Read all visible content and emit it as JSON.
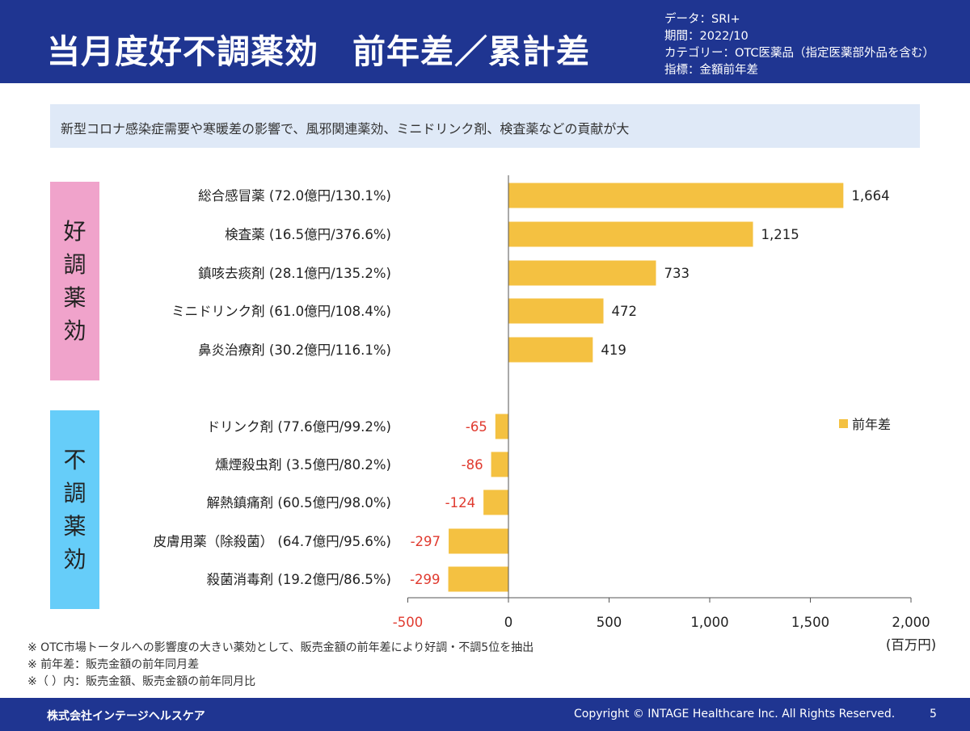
{
  "header": {
    "title": "当月度好不調薬効　前年差／累計差",
    "meta": [
      "データ：SRI+",
      "期間：2022/10",
      "カテゴリー：OTC医薬品（指定医薬部外品を含む）",
      "指標：金額前年差"
    ]
  },
  "banner": "新型コロナ感染症需要や寒暖差の影響で、風邪関連薬効、ミニドリンク剤、検査薬などの貢献が大",
  "groups": {
    "good": [
      "好",
      "調",
      "薬",
      "効"
    ],
    "bad": [
      "不",
      "調",
      "薬",
      "効"
    ]
  },
  "colors": {
    "header": "#1f3591",
    "bar": "#f4c141",
    "negative_label": "#e03a2f",
    "good_box": "#f0a3cb",
    "bad_box": "#66cdf9"
  },
  "chart_data": {
    "type": "bar",
    "orientation": "horizontal",
    "categories": [
      "総合感冒薬 (72.0億円/130.1%)",
      "検査薬 (16.5億円/376.6%)",
      "鎮咳去痰剤 (28.1億円/135.2%)",
      "ミニドリンク剤 (61.0億円/108.4%)",
      "鼻炎治療剤 (30.2億円/116.1%)",
      "ドリンク剤 (77.6億円/99.2%)",
      "燻煙殺虫剤 (3.5億円/80.2%)",
      "解熱鎮痛剤 (60.5億円/98.0%)",
      "皮膚用薬（除殺菌） (64.7億円/95.6%)",
      "殺菌消毒剤 (19.2億円/86.5%)"
    ],
    "series": [
      {
        "name": "前年差",
        "values": [
          1664,
          1215,
          733,
          472,
          419,
          -65,
          -86,
          -124,
          -297,
          -299
        ],
        "labels": [
          "1,664",
          "1,215",
          "733",
          "472",
          "419",
          "-65",
          "-86",
          "-124",
          "-297",
          "-299"
        ]
      }
    ],
    "xlim": [
      -500,
      2000
    ],
    "xticks": [
      -500,
      0,
      500,
      1000,
      1500,
      2000
    ],
    "xtick_labels": [
      "-500",
      "0",
      "500",
      "1,000",
      "1,500",
      "2,000"
    ],
    "unit": "(百万円)",
    "legend": "right",
    "grid": false
  },
  "notes": [
    "※ OTC市場トータルへの影響度の大きい薬効として、販売金額の前年差により好調・不調5位を抽出",
    "※ 前年差：販売金額の前年同月差",
    "※（ ）内：販売金額、販売金額の前年同月比"
  ],
  "footer": {
    "company": "株式会社インテージヘルスケア",
    "copyright": "Copyright © INTAGE Healthcare Inc. All Rights Reserved.",
    "page": "5"
  }
}
